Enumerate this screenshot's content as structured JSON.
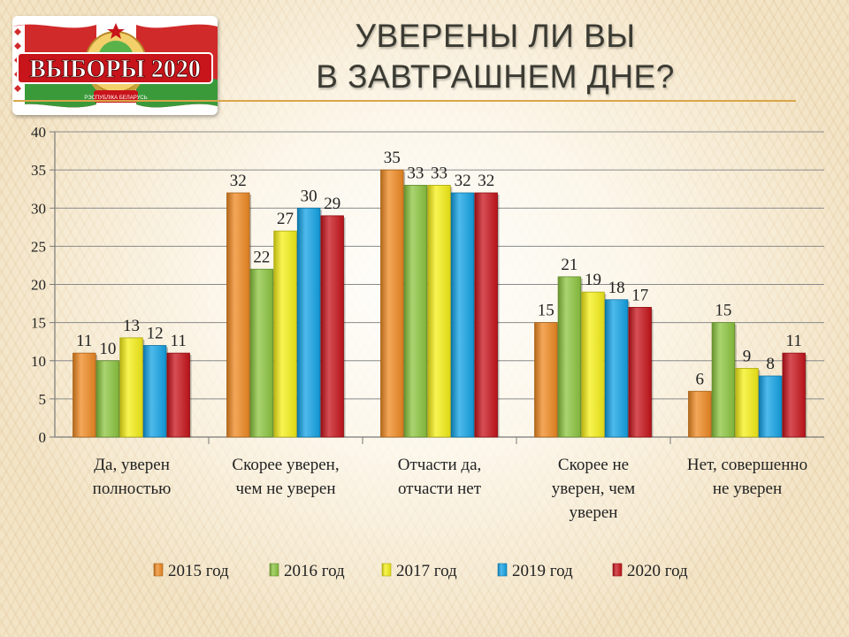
{
  "slide": {
    "title_line1": "УВЕРЕНЫ ЛИ ВЫ",
    "title_line2": "В ЗАВТРАШНЕМ ДНЕ?"
  },
  "logo": {
    "text": "ВЫБОРЫ 2020",
    "emblem_text": "РЭСПУБЛІКА БЕЛАРУСЬ"
  },
  "chart_data": {
    "type": "bar",
    "categories": [
      [
        "Да, уверен",
        "полностью"
      ],
      [
        "Скорее уверен,",
        "чем не уверен"
      ],
      [
        "Отчасти да,",
        "отчасти нет"
      ],
      [
        "Скорее не",
        "уверен, чем",
        "уверен"
      ],
      [
        "Нет, совершенно",
        "не уверен"
      ]
    ],
    "series": [
      {
        "name": "2015 год",
        "color": "#f08a22",
        "values": [
          11,
          32,
          35,
          15,
          6
        ]
      },
      {
        "name": "2016 год",
        "color": "#8cc63f",
        "values": [
          10,
          22,
          33,
          21,
          15
        ]
      },
      {
        "name": "2017 год",
        "color": "#f6f017",
        "values": [
          13,
          27,
          33,
          19,
          9
        ]
      },
      {
        "name": "2019 год",
        "color": "#13a3e6",
        "values": [
          12,
          30,
          32,
          18,
          8
        ]
      },
      {
        "name": "2020 год",
        "color": "#c8141b",
        "values": [
          11,
          29,
          32,
          17,
          11
        ]
      }
    ],
    "ylim": [
      0,
      40
    ],
    "yticks": [
      0,
      5,
      10,
      15,
      20,
      25,
      30,
      35,
      40
    ],
    "grid": true,
    "legend": "bottom",
    "data_labels": true
  }
}
